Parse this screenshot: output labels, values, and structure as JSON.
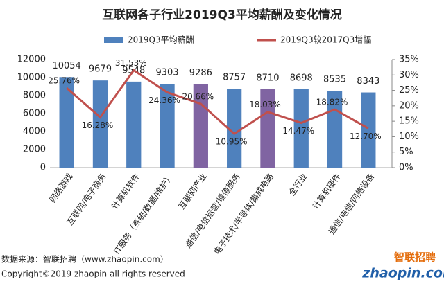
{
  "chart_data": {
    "type": "bar_line",
    "title": "互联网各子行业2019Q3平均薪酬及变化情况",
    "categories": [
      "网络游戏",
      "互联网/电子商务",
      "计算机软件",
      "IT服务（系统/数据/维护）",
      "互联网产业",
      "通信/电信运营/增值服务",
      "电子技术/半导体/集成电路",
      "全行业",
      "计算机硬件",
      "通信/电信/网络设备"
    ],
    "series": [
      {
        "name": "2019Q3平均薪酬",
        "type": "bar",
        "color": "#4f81bd",
        "colors": [
          "#4f81bd",
          "#4f81bd",
          "#4f81bd",
          "#4f81bd",
          "#8064a2",
          "#4f81bd",
          "#8064a2",
          "#4f81bd",
          "#4f81bd",
          "#4f81bd"
        ],
        "values": [
          10054,
          9679,
          9548,
          9303,
          9286,
          8757,
          8710,
          8698,
          8535,
          8343
        ]
      },
      {
        "name": "2019Q3较2017Q3增幅",
        "type": "line",
        "axis": "y2",
        "color": "#c0504d",
        "values": [
          25.76,
          16.28,
          31.53,
          24.36,
          20.66,
          10.95,
          18.03,
          14.47,
          18.82,
          12.7
        ],
        "value_labels": [
          "25.76%",
          "16.28%",
          "31.53%",
          "24.36%",
          "20.66%",
          "10.95%",
          "18.03%",
          "14.47%",
          "18.82%",
          "12.70%"
        ]
      }
    ],
    "ylim": [
      0,
      12000
    ],
    "yticks": [
      0,
      2000,
      4000,
      6000,
      8000,
      10000,
      12000
    ],
    "y2lim": [
      0,
      35
    ],
    "y2ticks": [
      {
        "value": 0,
        "label": "0%"
      },
      {
        "value": 5,
        "label": "5%"
      },
      {
        "value": 10,
        "label": "10%"
      },
      {
        "value": 15,
        "label": "15%"
      },
      {
        "value": 20,
        "label": "20%"
      },
      {
        "value": 25,
        "label": "25%"
      },
      {
        "value": 30,
        "label": "30%"
      },
      {
        "value": 35,
        "label": "35%"
      }
    ],
    "source": "数据来源：智联招聘（www.zhaopin.com）",
    "copyright": "Copyright©2019 zhaopin all rights reserved",
    "logo_cn": "智联招聘",
    "logo_en": "zhaopin.com"
  }
}
